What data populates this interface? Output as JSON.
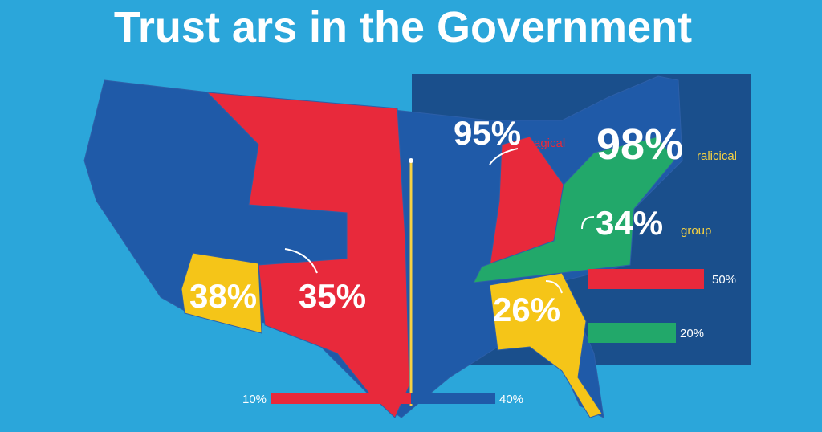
{
  "title": "Trust ars in the Government",
  "labels": [
    {
      "value": "95%",
      "note": "ragical"
    },
    {
      "value": "98%",
      "note": "ralicical"
    },
    {
      "value": "34%",
      "note": "group"
    },
    {
      "value": "38%"
    },
    {
      "value": "35%"
    },
    {
      "value": "26%"
    }
  ],
  "legend": {
    "red": "50%",
    "green": "20%"
  },
  "bottom_scale": {
    "left": "10%",
    "right": "40%"
  }
}
